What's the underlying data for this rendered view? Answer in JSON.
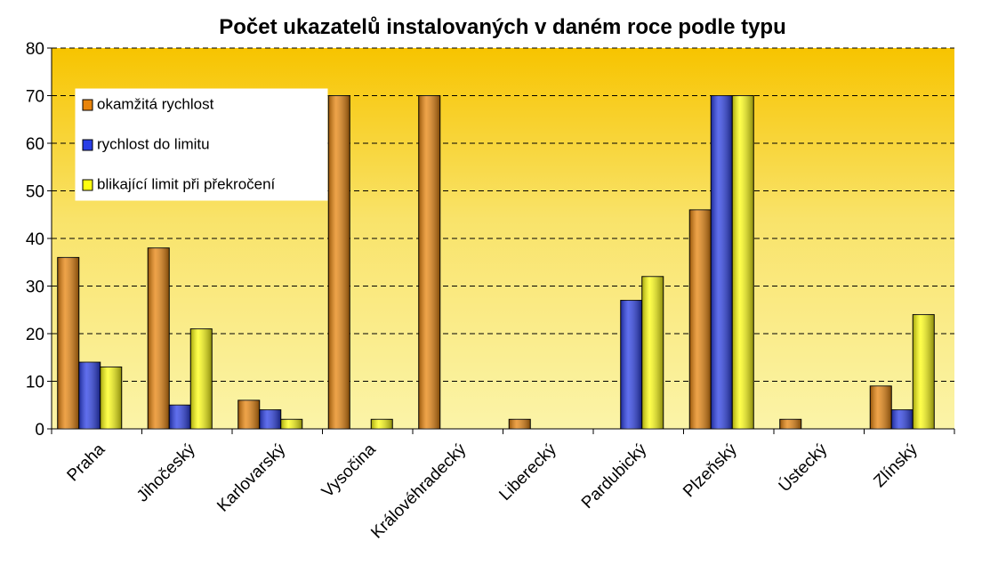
{
  "chart_data": {
    "type": "bar",
    "title": "Počet ukazatelů instalovaných v daném roce podle typu",
    "categories": [
      "Praha",
      "Jihočeský",
      "Karlovarský",
      "Vysočina",
      "Královéhradecký",
      "Liberecký",
      "Pardubický",
      "Plzeňský",
      "Ústecký",
      "Zlínský"
    ],
    "series": [
      {
        "name": "okamžitá rychlost",
        "color": "#e8840c",
        "values": [
          36,
          38,
          6,
          70,
          70,
          2,
          0,
          46,
          2,
          9
        ]
      },
      {
        "name": "rychlost do limitu",
        "color": "#2a3ee6",
        "values": [
          14,
          5,
          4,
          0,
          0,
          0,
          27,
          70,
          0,
          4
        ]
      },
      {
        "name": "blikající limit při překročení",
        "color": "#ffff10",
        "values": [
          13,
          21,
          2,
          2,
          0,
          0,
          32,
          70,
          0,
          24
        ]
      }
    ],
    "ylim": [
      0,
      80
    ],
    "yticks": [
      0,
      10,
      20,
      30,
      40,
      50,
      60,
      70,
      80
    ],
    "grid": true,
    "legend": "top-left"
  }
}
